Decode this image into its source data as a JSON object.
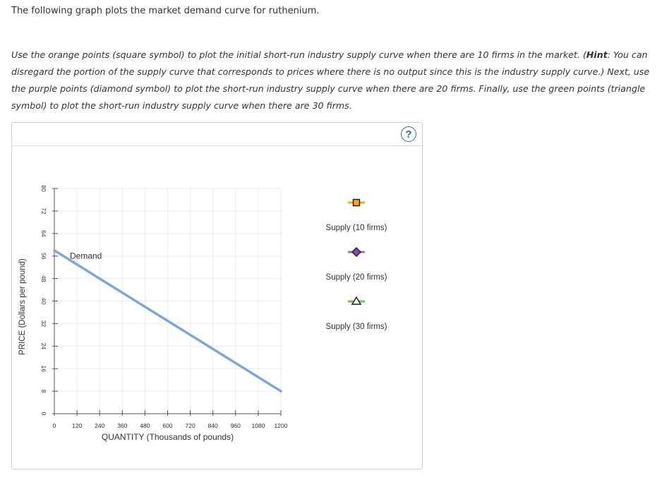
{
  "intro": "The following graph plots the market demand curve for ruthenium.",
  "instructions": {
    "p1": "Use the orange points (square symbol) to plot the initial short-run industry supply curve when there are 10 firms in the market. (",
    "hint": "Hint",
    "p2": ": You can disregard the portion of the supply curve that corresponds to prices where there is no output since this is the industry supply curve.) Next, use the purple points (diamond symbol) to plot the short-run industry supply curve when there are 20 firms. Finally, use the green points (triangle symbol) to plot the short-run industry supply curve when there are 30 firms."
  },
  "help": {
    "icon": "question-icon",
    "label": "?"
  },
  "chart_data": {
    "type": "line",
    "xlabel": "QUANTITY (Thousands of pounds)",
    "ylabel": "PRICE (Dollars per pound)",
    "xlim": [
      0,
      1200
    ],
    "ylim": [
      0,
      80
    ],
    "x_ticks": [
      0,
      120,
      240,
      360,
      480,
      600,
      720,
      840,
      960,
      1080,
      1200
    ],
    "y_ticks": [
      0,
      8,
      16,
      24,
      32,
      40,
      48,
      56,
      64,
      72,
      80
    ],
    "grid": true,
    "series": [
      {
        "name": "Demand",
        "color": "#7da7d4",
        "x": [
          0,
          1200
        ],
        "y": [
          58,
          8
        ]
      }
    ],
    "legend": [
      {
        "label": "Supply (10 firms)",
        "symbol": "square",
        "color": "#f5a623",
        "line_color": "#f5a623"
      },
      {
        "label": "Supply (20 firms)",
        "symbol": "diamond",
        "color": "#8e44ad",
        "line_color": "#a66bc7"
      },
      {
        "label": "Supply (30 firms)",
        "symbol": "triangle",
        "color": "#2e7d32",
        "line_color": "#6cc24a"
      }
    ],
    "legend_placement": "right"
  }
}
